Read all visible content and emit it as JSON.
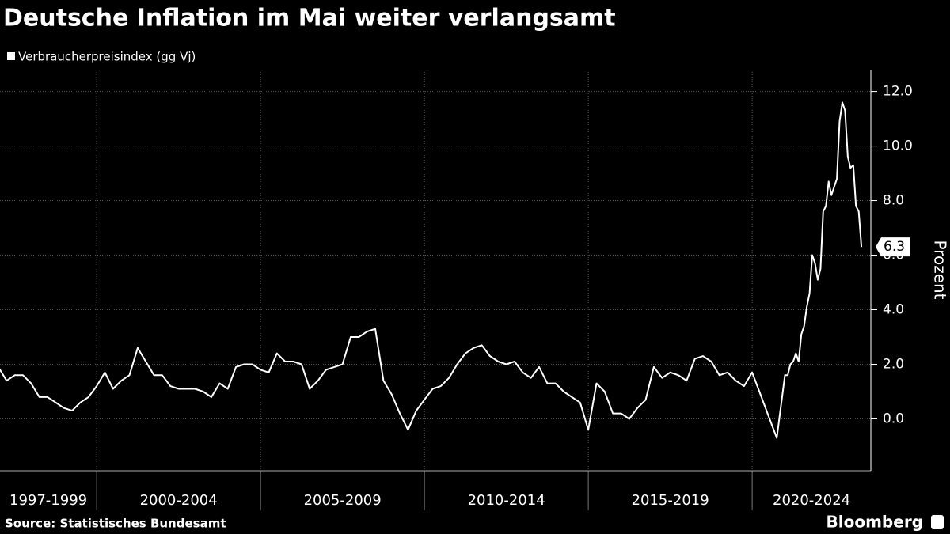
{
  "chart_data": {
    "type": "line",
    "title": "Deutsche Inflation im Mai weiter verlangsamt",
    "source": "Source: Statistisches Bundesamt",
    "brand": "Bloomberg",
    "y_label": "Prozent",
    "x": [
      1997,
      1997.25,
      1997.5,
      1997.75,
      1998,
      1998.25,
      1998.5,
      1998.75,
      1999,
      1999.25,
      1999.5,
      1999.75,
      2000,
      2000.25,
      2000.5,
      2000.75,
      2001,
      2001.25,
      2001.5,
      2001.75,
      2002,
      2002.25,
      2002.5,
      2002.75,
      2003,
      2003.25,
      2003.5,
      2003.75,
      2004,
      2004.25,
      2004.5,
      2004.75,
      2005,
      2005.25,
      2005.5,
      2005.75,
      2006,
      2006.25,
      2006.5,
      2006.75,
      2007,
      2007.25,
      2007.5,
      2007.75,
      2008,
      2008.25,
      2008.5,
      2008.75,
      2009,
      2009.25,
      2009.5,
      2009.75,
      2010,
      2010.25,
      2010.5,
      2010.75,
      2011,
      2011.25,
      2011.5,
      2011.75,
      2012,
      2012.25,
      2012.5,
      2012.75,
      2013,
      2013.25,
      2013.5,
      2013.75,
      2014,
      2014.25,
      2014.5,
      2014.75,
      2015,
      2015.25,
      2015.5,
      2015.75,
      2016,
      2016.25,
      2016.5,
      2016.75,
      2017,
      2017.25,
      2017.5,
      2017.75,
      2018,
      2018.25,
      2018.5,
      2018.75,
      2019,
      2019.25,
      2019.5,
      2019.75,
      2020,
      2020.25,
      2020.5,
      2020.75,
      2021,
      2021.083,
      2021.167,
      2021.25,
      2021.333,
      2021.417,
      2021.5,
      2021.583,
      2021.667,
      2021.75,
      2021.833,
      2021.917,
      2022,
      2022.083,
      2022.167,
      2022.25,
      2022.333,
      2022.417,
      2022.5,
      2022.583,
      2022.667,
      2022.75,
      2022.833,
      2022.917,
      2023,
      2023.083,
      2023.167,
      2023.25,
      2023.333
    ],
    "series": [
      {
        "name": "Verbraucherpreisindex (gg Vj)",
        "color": "#ffffff",
        "values": [
          1.9,
          1.4,
          1.6,
          1.6,
          1.3,
          0.8,
          0.8,
          0.6,
          0.4,
          0.3,
          0.6,
          0.8,
          1.2,
          1.7,
          1.1,
          1.4,
          1.6,
          2.6,
          2.1,
          1.6,
          1.6,
          1.2,
          1.1,
          1.1,
          1.1,
          1.0,
          0.8,
          1.3,
          1.1,
          1.9,
          2.0,
          2.0,
          1.8,
          1.7,
          2.4,
          2.1,
          2.1,
          2.0,
          1.1,
          1.4,
          1.8,
          1.9,
          2.0,
          3.0,
          3.0,
          3.2,
          3.3,
          1.4,
          0.9,
          0.2,
          -0.4,
          0.3,
          0.7,
          1.1,
          1.2,
          1.5,
          2.0,
          2.4,
          2.6,
          2.7,
          2.3,
          2.1,
          2.0,
          2.1,
          1.7,
          1.5,
          1.9,
          1.3,
          1.3,
          1.0,
          0.8,
          0.6,
          -0.4,
          1.3,
          1.0,
          0.2,
          0.2,
          0.0,
          0.4,
          0.7,
          1.9,
          1.5,
          1.7,
          1.6,
          1.4,
          2.2,
          2.3,
          2.1,
          1.6,
          1.7,
          1.4,
          1.2,
          1.7,
          0.9,
          0.1,
          -0.7,
          1.6,
          1.6,
          2.0,
          2.1,
          2.4,
          2.1,
          3.1,
          3.4,
          4.1,
          4.6,
          6.0,
          5.7,
          5.1,
          5.5,
          7.6,
          7.8,
          8.7,
          8.2,
          8.5,
          8.8,
          10.9,
          11.6,
          11.3,
          9.6,
          9.2,
          9.3,
          7.8,
          7.6,
          6.3
        ]
      }
    ],
    "xlim": [
      1997.05,
      2023.62
    ],
    "xticks": [
      {
        "value": 1997,
        "label": "1997-1999"
      },
      {
        "value": 2000,
        "label": "2000-2004"
      },
      {
        "value": 2005,
        "label": "2005-2009"
      },
      {
        "value": 2010,
        "label": "2010-2014"
      },
      {
        "value": 2015,
        "label": "2015-2019"
      },
      {
        "value": 2020,
        "label": "2020-2024"
      }
    ],
    "ylim": [
      -1.9,
      12.8
    ],
    "yticks": [
      {
        "value": 0,
        "label": "0.0"
      },
      {
        "value": 2,
        "label": "2.0"
      },
      {
        "value": 4,
        "label": "4.0"
      },
      {
        "value": 6,
        "label": "6.0"
      },
      {
        "value": 8,
        "label": "8.0"
      },
      {
        "value": 10,
        "label": "10.0"
      },
      {
        "value": 12,
        "label": "12.0"
      }
    ],
    "grid": true
  }
}
